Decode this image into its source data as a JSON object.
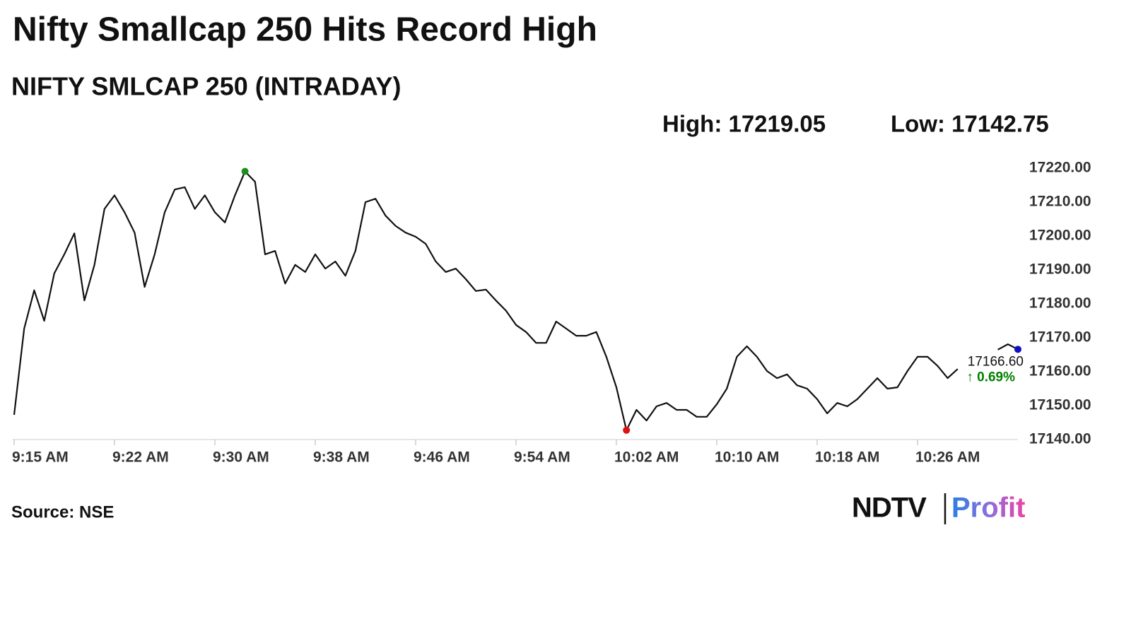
{
  "chart_data": {
    "type": "line",
    "title": "Nifty Smallcap 250 Hits Record High",
    "subtitle": "NIFTY SMLCAP 250 (INTRADAY)",
    "high_label": "High: 17219.05",
    "low_label": "Low: 17142.75",
    "source": "Source: NSE",
    "logo": {
      "left": "NDTV",
      "right": "Profit"
    },
    "change_label": "↑ 0.69%",
    "change_color": "#008000",
    "color": "#111111",
    "high_color": "#1a8f1a",
    "low_color": "#e01010",
    "last_color": "#1010c0",
    "categories": [
      "9:15 AM",
      null,
      null,
      null,
      null,
      null,
      null,
      null,
      null,
      null,
      "9:22 AM",
      null,
      null,
      null,
      null,
      null,
      null,
      null,
      null,
      null,
      "9:30 AM",
      null,
      null,
      null,
      null,
      null,
      null,
      null,
      null,
      null,
      "9:38 AM",
      null,
      null,
      null,
      null,
      null,
      null,
      null,
      null,
      null,
      "9:46 AM",
      null,
      null,
      null,
      null,
      null,
      null,
      null,
      null,
      null,
      "9:54 AM",
      null,
      null,
      null,
      null,
      null,
      null,
      null,
      null,
      null,
      "10:02 AM",
      null,
      null,
      null,
      null,
      null,
      null,
      null,
      null,
      null,
      "10:10 AM",
      null,
      null,
      null,
      null,
      null,
      null,
      null,
      null,
      null,
      "10:18 AM",
      null,
      null,
      null,
      null,
      null,
      null,
      null,
      null,
      null,
      "10:26 AM",
      null,
      null,
      null,
      null,
      null,
      null,
      null,
      null,
      null,
      null
    ],
    "values": [
      17147.3,
      17172.7,
      17184,
      17175,
      17189,
      17194.6,
      17200.8,
      17181,
      17191.5,
      17208,
      17212,
      17207,
      17201,
      17185,
      17194.6,
      17207,
      17213.7,
      17214.4,
      17208,
      17212,
      17207,
      17204,
      17212,
      17219.05,
      17216,
      17194.6,
      17195.6,
      17186,
      17191.5,
      17189.4,
      17194.6,
      17190.4,
      17192.5,
      17188.3,
      17195.6,
      17210,
      17211,
      17206,
      17203,
      17201,
      17199.8,
      17197.7,
      17192.5,
      17189.4,
      17190.4,
      17187.3,
      17183.8,
      17184.2,
      17181,
      17178,
      17173.8,
      17171.7,
      17168.5,
      17168.5,
      17174.8,
      17172.7,
      17170.6,
      17170.6,
      17171.7,
      17164.4,
      17155.4,
      17142.75,
      17148.75,
      17145.6,
      17149.8,
      17150.8,
      17148.75,
      17148.75,
      17146.7,
      17146.7,
      17150.4,
      17155,
      17164.4,
      17167.5,
      17164.4,
      17160.2,
      17158.1,
      17159.2,
      17156,
      17155,
      17151.9,
      17147.7,
      17150.8,
      17149.8,
      17151.9,
      17155,
      17158.1,
      17155,
      17155.4,
      17160.2,
      17164.4,
      17164.4,
      17161.7,
      17158.1,
      17160.8,
      null,
      null,
      null,
      17166.5,
      17168.1,
      17166.6
    ],
    "value_labels": [
      null,
      null,
      null,
      null,
      null,
      null,
      null,
      null,
      null,
      null,
      null,
      null,
      null,
      null,
      null,
      null,
      null,
      null,
      null,
      null,
      null,
      null,
      null,
      null,
      null,
      null,
      null,
      null,
      null,
      null,
      null,
      null,
      null,
      null,
      null,
      null,
      null,
      null,
      null,
      null,
      null,
      null,
      null,
      null,
      null,
      null,
      null,
      null,
      null,
      null,
      null,
      null,
      null,
      null,
      null,
      null,
      null,
      null,
      null,
      null,
      null,
      null,
      null,
      null,
      null,
      null,
      null,
      null,
      null,
      null,
      null,
      null,
      null,
      null,
      null,
      null,
      null,
      null,
      null,
      null,
      null,
      null,
      null,
      null,
      null,
      null,
      null,
      null,
      null,
      null,
      null,
      null,
      null,
      null,
      null,
      null,
      null,
      null,
      null,
      null,
      "17166.60"
    ],
    "ylim": [
      17140,
      17220
    ],
    "yticks": [
      {
        "value": 17220,
        "label": "17220.00"
      },
      {
        "value": 17210,
        "label": "17210.00"
      },
      {
        "value": 17200,
        "label": "17200.00"
      },
      {
        "value": 17190,
        "label": "17190.00"
      },
      {
        "value": 17180,
        "label": "17180.00"
      },
      {
        "value": 17170,
        "label": "17170.00"
      },
      {
        "value": 17160,
        "label": "17160.00"
      },
      {
        "value": 17150,
        "label": "17150.00"
      },
      {
        "value": 17140,
        "label": "17140.00"
      }
    ],
    "grid": false
  }
}
